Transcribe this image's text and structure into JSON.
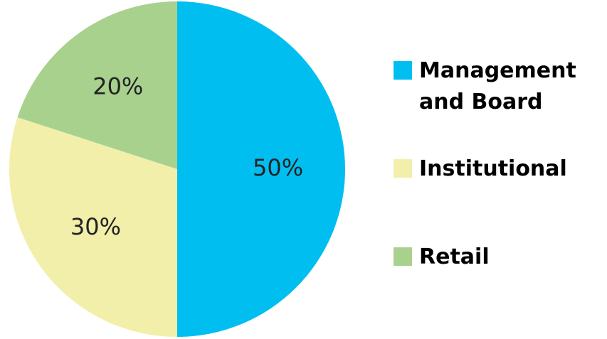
{
  "chart_data": {
    "type": "pie",
    "title": "",
    "slices": [
      {
        "label": "Management and Board",
        "legend_label": "Management\nand Board",
        "value": 50,
        "display": "50%",
        "color": "#00BFF0"
      },
      {
        "label": "Institutional",
        "legend_label": "Institutional",
        "value": 30,
        "display": "30%",
        "color": "#F2EFAA"
      },
      {
        "label": "Retail",
        "legend_label": "Retail",
        "value": 20,
        "display": "20%",
        "color": "#A9D18E"
      }
    ],
    "start": "12 o'clock",
    "direction": "clockwise",
    "legend_position": "right"
  }
}
